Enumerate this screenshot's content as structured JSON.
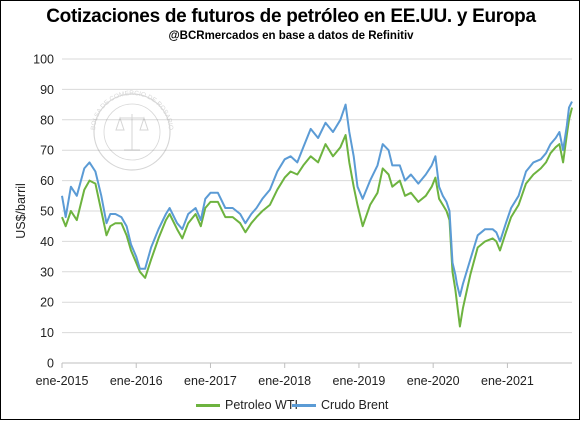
{
  "header": {
    "title": "Cotizaciones de futuros de petróleo en EE.UU. y Europa",
    "subtitle": "@BCRmercados  en base a datos de Refinitiv"
  },
  "watermark": {
    "text": "BOLSA DE COMERCIO DE ROSARIO"
  },
  "colors": {
    "wti": "#6db33f",
    "brent": "#5b9bd5",
    "grid": "#d9d9d9",
    "axis": "#bfbfbf"
  },
  "chart_data": {
    "type": "line",
    "title": "Cotizaciones de futuros de petróleo en EE.UU. y Europa",
    "subtitle": "@BCRmercados  en base a datos de Refinitiv",
    "xlabel": "",
    "ylabel": "US$/barril",
    "ylim": [
      0,
      100
    ],
    "yticks": [
      0,
      10,
      20,
      30,
      40,
      50,
      60,
      70,
      80,
      90,
      100
    ],
    "xticks": [
      "ene-2015",
      "ene-2016",
      "ene-2017",
      "ene-2018",
      "ene-2019",
      "ene-2020",
      "ene-2021"
    ],
    "xlim": [
      2015.0,
      2021.87
    ],
    "grid": true,
    "legend_position": "bottom",
    "series": [
      {
        "name": "Petroleo WTI",
        "color": "#6db33f",
        "x": [
          2015.0,
          2015.05,
          2015.12,
          2015.2,
          2015.3,
          2015.37,
          2015.45,
          2015.53,
          2015.6,
          2015.65,
          2015.72,
          2015.8,
          2015.87,
          2015.93,
          2016.0,
          2016.05,
          2016.12,
          2016.2,
          2016.3,
          2016.4,
          2016.45,
          2016.55,
          2016.62,
          2016.7,
          2016.8,
          2016.87,
          2016.93,
          2017.0,
          2017.1,
          2017.2,
          2017.3,
          2017.4,
          2017.47,
          2017.55,
          2017.62,
          2017.7,
          2017.8,
          2017.9,
          2018.0,
          2018.08,
          2018.17,
          2018.25,
          2018.35,
          2018.45,
          2018.55,
          2018.65,
          2018.75,
          2018.82,
          2018.87,
          2018.93,
          2018.98,
          2019.05,
          2019.15,
          2019.25,
          2019.32,
          2019.4,
          2019.45,
          2019.55,
          2019.62,
          2019.7,
          2019.8,
          2019.9,
          2019.98,
          2020.03,
          2020.08,
          2020.13,
          2020.18,
          2020.22,
          2020.26,
          2020.3,
          2020.32,
          2020.36,
          2020.4,
          2020.5,
          2020.6,
          2020.7,
          2020.8,
          2020.85,
          2020.9,
          2020.98,
          2021.05,
          2021.15,
          2021.25,
          2021.35,
          2021.45,
          2021.52,
          2021.58,
          2021.65,
          2021.7,
          2021.75,
          2021.8,
          2021.83,
          2021.87
        ],
        "values": [
          48,
          45,
          50,
          47,
          57,
          60,
          59,
          50,
          42,
          45,
          46,
          46,
          42,
          37,
          33,
          30,
          28,
          34,
          41,
          47,
          49,
          44,
          41,
          46,
          49,
          45,
          51,
          53,
          53,
          48,
          48,
          46,
          43,
          46,
          48,
          50,
          52,
          57,
          61,
          63,
          62,
          65,
          68,
          66,
          72,
          68,
          71,
          75,
          66,
          58,
          52,
          45,
          52,
          56,
          64,
          62,
          58,
          60,
          55,
          56,
          53,
          55,
          58,
          61,
          54,
          52,
          50,
          47,
          30,
          24,
          20,
          12,
          18,
          29,
          38,
          40,
          41,
          40,
          37,
          43,
          48,
          52,
          59,
          62,
          64,
          66,
          69,
          71,
          72,
          66,
          75,
          80,
          84
        ]
      },
      {
        "name": "Crudo Brent",
        "color": "#5b9bd5",
        "x": [
          2015.0,
          2015.05,
          2015.12,
          2015.2,
          2015.3,
          2015.37,
          2015.45,
          2015.53,
          2015.6,
          2015.65,
          2015.72,
          2015.8,
          2015.87,
          2015.93,
          2016.0,
          2016.05,
          2016.12,
          2016.2,
          2016.3,
          2016.4,
          2016.45,
          2016.55,
          2016.62,
          2016.7,
          2016.8,
          2016.87,
          2016.93,
          2017.0,
          2017.1,
          2017.2,
          2017.3,
          2017.4,
          2017.47,
          2017.55,
          2017.62,
          2017.7,
          2017.8,
          2017.9,
          2018.0,
          2018.08,
          2018.17,
          2018.25,
          2018.35,
          2018.45,
          2018.55,
          2018.65,
          2018.75,
          2018.82,
          2018.87,
          2018.93,
          2018.98,
          2019.05,
          2019.15,
          2019.25,
          2019.32,
          2019.4,
          2019.45,
          2019.55,
          2019.62,
          2019.7,
          2019.8,
          2019.9,
          2019.98,
          2020.03,
          2020.08,
          2020.13,
          2020.18,
          2020.22,
          2020.26,
          2020.3,
          2020.32,
          2020.36,
          2020.4,
          2020.5,
          2020.6,
          2020.7,
          2020.8,
          2020.85,
          2020.9,
          2020.98,
          2021.05,
          2021.15,
          2021.25,
          2021.35,
          2021.45,
          2021.52,
          2021.58,
          2021.65,
          2021.7,
          2021.75,
          2021.8,
          2021.83,
          2021.87
        ],
        "values": [
          55,
          48,
          58,
          55,
          64,
          66,
          63,
          55,
          46,
          49,
          49,
          48,
          45,
          39,
          35,
          31,
          31,
          38,
          44,
          49,
          51,
          46,
          44,
          49,
          51,
          47,
          54,
          56,
          56,
          51,
          51,
          49,
          46,
          49,
          51,
          54,
          57,
          63,
          67,
          68,
          66,
          71,
          77,
          74,
          79,
          76,
          80,
          85,
          76,
          68,
          58,
          54,
          60,
          65,
          72,
          70,
          65,
          65,
          60,
          62,
          59,
          62,
          65,
          68,
          58,
          55,
          53,
          50,
          33,
          29,
          26,
          22,
          26,
          34,
          42,
          44,
          44,
          43,
          40,
          46,
          51,
          55,
          63,
          66,
          67,
          69,
          72,
          74,
          76,
          70,
          78,
          84,
          86
        ]
      }
    ]
  }
}
